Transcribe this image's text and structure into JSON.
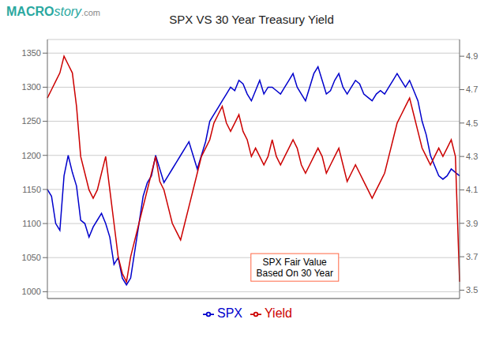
{
  "chart_data": {
    "type": "line",
    "title": "SPX VS 30 Year Treasury Yield",
    "series": [
      {
        "name": "SPX",
        "color": "#0000cc",
        "values": [
          1150,
          1140,
          1100,
          1090,
          1170,
          1200,
          1175,
          1155,
          1105,
          1100,
          1080,
          1095,
          1105,
          1115,
          1100,
          1080,
          1040,
          1050,
          1020,
          1010,
          1020,
          1060,
          1100,
          1140,
          1160,
          1170,
          1200,
          1180,
          1160,
          1170,
          1180,
          1190,
          1200,
          1210,
          1220,
          1200,
          1180,
          1200,
          1220,
          1250,
          1260,
          1270,
          1280,
          1290,
          1300,
          1295,
          1310,
          1305,
          1290,
          1280,
          1295,
          1310,
          1290,
          1300,
          1300,
          1295,
          1290,
          1300,
          1310,
          1320,
          1300,
          1290,
          1280,
          1300,
          1320,
          1330,
          1310,
          1290,
          1295,
          1310,
          1320,
          1300,
          1290,
          1300,
          1310,
          1305,
          1290,
          1285,
          1280,
          1290,
          1295,
          1290,
          1300,
          1310,
          1320,
          1310,
          1300,
          1310,
          1295,
          1280,
          1250,
          1230,
          1200,
          1185,
          1170,
          1165,
          1170,
          1180,
          1175,
          1170
        ]
      },
      {
        "name": "Yield",
        "color": "#cc0000",
        "axis": "y2",
        "values": [
          4.65,
          4.7,
          4.75,
          4.8,
          4.9,
          4.85,
          4.8,
          4.6,
          4.3,
          4.2,
          4.1,
          4.05,
          4.1,
          4.2,
          4.3,
          4.1,
          3.9,
          3.7,
          3.6,
          3.55,
          3.7,
          3.8,
          3.9,
          4.0,
          4.1,
          4.2,
          4.3,
          4.15,
          4.1,
          4.0,
          3.9,
          3.85,
          3.8,
          3.9,
          4.0,
          4.1,
          4.2,
          4.3,
          4.35,
          4.4,
          4.5,
          4.55,
          4.6,
          4.5,
          4.45,
          4.5,
          4.55,
          4.45,
          4.4,
          4.3,
          4.35,
          4.3,
          4.25,
          4.3,
          4.4,
          4.3,
          4.25,
          4.3,
          4.35,
          4.4,
          4.35,
          4.25,
          4.2,
          4.25,
          4.3,
          4.35,
          4.3,
          4.2,
          4.25,
          4.3,
          4.35,
          4.25,
          4.15,
          4.2,
          4.25,
          4.2,
          4.15,
          4.1,
          4.05,
          4.1,
          4.15,
          4.2,
          4.3,
          4.4,
          4.5,
          4.55,
          4.6,
          4.65,
          4.55,
          4.45,
          4.35,
          4.3,
          4.25,
          4.3,
          4.35,
          4.3,
          4.35,
          4.4,
          4.3,
          3.55
        ]
      }
    ],
    "ylim": [
      990,
      1370
    ],
    "yticks": [
      1000,
      1050,
      1100,
      1150,
      1200,
      1250,
      1300,
      1350
    ],
    "y2lim": [
      3.45,
      5.0
    ],
    "y2ticks": [
      3.5,
      3.7,
      3.9,
      4.1,
      4.3,
      4.5,
      4.7,
      4.9
    ],
    "grid": true,
    "tick_labels": "y",
    "legend": "bottom",
    "annotations": [
      {
        "text": "MACRO"
      },
      {
        "text": "story"
      },
      {
        "text": ".com"
      },
      {
        "text": "SPX Fair Value\nBased On 30 Year",
        "color": "#ff6644"
      }
    ]
  }
}
